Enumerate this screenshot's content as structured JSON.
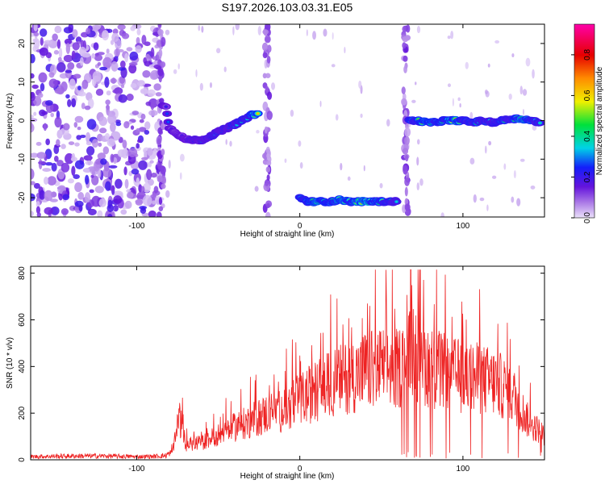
{
  "title": "S197.2026.103.03.31.E05",
  "chart_data": [
    {
      "type": "heatmap",
      "name": "spectrogram",
      "xlabel": "Height of straight line (km)",
      "ylabel": "Frequency (Hz)",
      "xlim": [
        -165,
        150
      ],
      "ylim": [
        -25,
        25
      ],
      "xticks": [
        -100,
        0,
        100
      ],
      "yticks": [
        -20,
        -10,
        0,
        10,
        20
      ],
      "colorbar": {
        "label": "Normalized spectral amplitude",
        "range": [
          0.0,
          0.95
        ],
        "ticks": [
          0.0,
          0.2,
          0.4,
          0.6,
          0.8
        ]
      },
      "noise_region_x": [
        -165,
        -85
      ],
      "ridge": [
        {
          "x": -84,
          "f": 4,
          "a": 0.3
        },
        {
          "x": -82,
          "f": 4,
          "a": 0.25
        },
        {
          "x": -80,
          "f": -2,
          "a": 0.3
        },
        {
          "x": -76,
          "f": -3,
          "a": 0.25
        },
        {
          "x": -70,
          "f": -5,
          "a": 0.3
        },
        {
          "x": -60,
          "f": -5,
          "a": 0.35
        },
        {
          "x": -55,
          "f": -4,
          "a": 0.4
        },
        {
          "x": -50,
          "f": -3,
          "a": 0.35
        },
        {
          "x": -45,
          "f": -2,
          "a": 0.4
        },
        {
          "x": -40,
          "f": -1,
          "a": 0.45
        },
        {
          "x": -35,
          "f": 0,
          "a": 0.5
        },
        {
          "x": -30,
          "f": 1.5,
          "a": 0.55
        },
        {
          "x": -25,
          "f": 1.8,
          "a": 0.9
        },
        {
          "x": 0,
          "f": -20,
          "a": 0.55
        },
        {
          "x": 5,
          "f": -21,
          "a": 0.6
        },
        {
          "x": 10,
          "f": -21,
          "a": 0.75
        },
        {
          "x": 15,
          "f": -21,
          "a": 0.65
        },
        {
          "x": 20,
          "f": -21,
          "a": 0.6
        },
        {
          "x": 25,
          "f": -20.5,
          "a": 0.8
        },
        {
          "x": 30,
          "f": -21,
          "a": 0.6
        },
        {
          "x": 35,
          "f": -21,
          "a": 0.7
        },
        {
          "x": 40,
          "f": -21,
          "a": 0.9
        },
        {
          "x": 45,
          "f": -21,
          "a": 0.75
        },
        {
          "x": 50,
          "f": -21,
          "a": 0.6
        },
        {
          "x": 55,
          "f": -21,
          "a": 0.5
        },
        {
          "x": 60,
          "f": -21,
          "a": 0.45
        },
        {
          "x": 67,
          "f": 0,
          "a": 0.5
        },
        {
          "x": 72,
          "f": 0,
          "a": 0.55
        },
        {
          "x": 78,
          "f": -0.5,
          "a": 0.8
        },
        {
          "x": 83,
          "f": -0.5,
          "a": 0.6
        },
        {
          "x": 88,
          "f": 0,
          "a": 0.55
        },
        {
          "x": 94,
          "f": 0,
          "a": 0.8
        },
        {
          "x": 100,
          "f": 0,
          "a": 0.6
        },
        {
          "x": 106,
          "f": -0.5,
          "a": 0.5
        },
        {
          "x": 112,
          "f": 0,
          "a": 0.5
        },
        {
          "x": 118,
          "f": -0.5,
          "a": 0.45
        },
        {
          "x": 124,
          "f": 0,
          "a": 0.55
        },
        {
          "x": 130,
          "f": 0.5,
          "a": 0.5
        },
        {
          "x": 136,
          "f": 0.5,
          "a": 0.8
        },
        {
          "x": 142,
          "f": 0,
          "a": 0.55
        },
        {
          "x": 148,
          "f": -0.5,
          "a": 0.45
        }
      ],
      "vertical_streaks_x": [
        -85,
        -20,
        65
      ]
    },
    {
      "type": "line",
      "name": "snr",
      "xlabel": "Height of straight line (km)",
      "ylabel": "SNR (10 * v/v)",
      "xlim": [
        -165,
        150
      ],
      "ylim": [
        0,
        830
      ],
      "xticks": [
        -100,
        0,
        100
      ],
      "yticks": [
        0,
        200,
        400,
        600,
        800
      ],
      "series": [
        {
          "name": "SNR",
          "color": "#ee2222",
          "envelope": {
            "x": [
              -165,
              -140,
              -120,
              -100,
              -90,
              -82,
              -78,
              -76,
              -74,
              -70,
              -60,
              -50,
              -40,
              -30,
              -20,
              -10,
              0,
              10,
              20,
              30,
              40,
              50,
              60,
              65,
              70,
              80,
              90,
              100,
              110,
              120,
              130,
              140,
              150
            ],
            "y": [
              15,
              18,
              18,
              15,
              16,
              20,
              45,
              120,
              230,
              80,
              90,
              130,
              170,
              200,
              240,
              260,
              310,
              360,
              400,
              430,
              460,
              480,
              470,
              520,
              560,
              480,
              450,
              430,
              420,
              400,
              350,
              200,
              130
            ]
          },
          "peak_max": 815,
          "peak_at_x": 68
        }
      ]
    }
  ],
  "colors": {
    "line": "#ee2222",
    "axis": "#000000"
  }
}
